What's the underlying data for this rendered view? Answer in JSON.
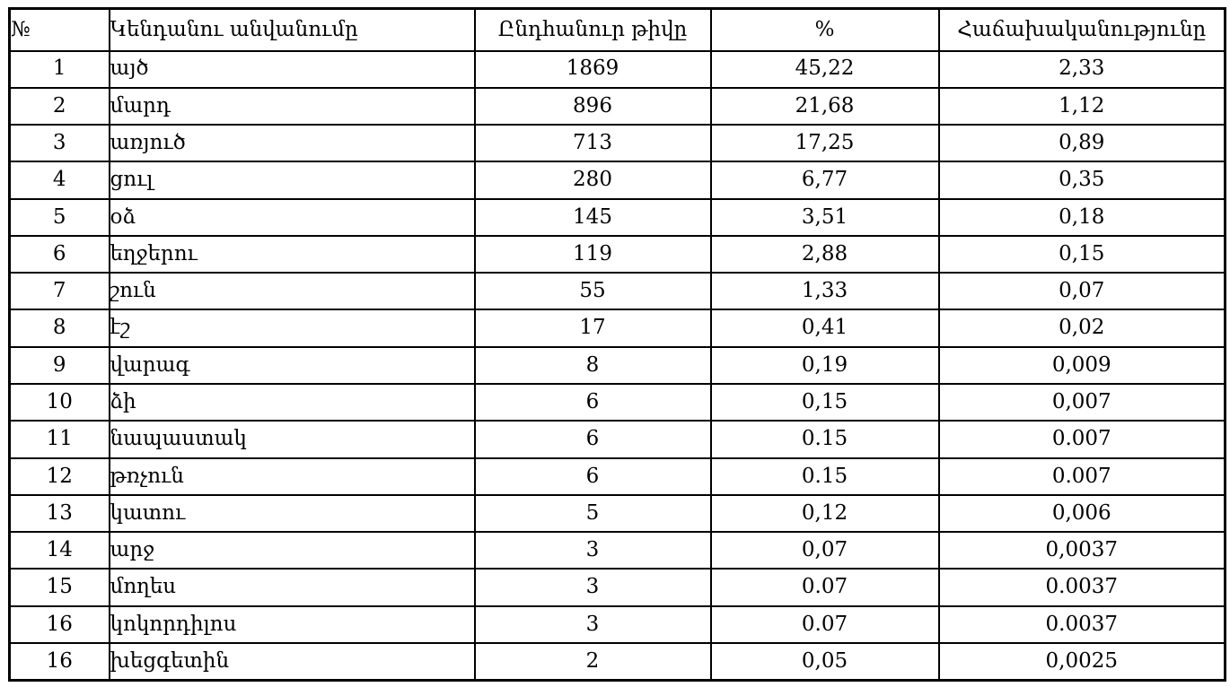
{
  "table": {
    "columns": [
      {
        "label": "№"
      },
      {
        "label": "Կենդանու անվանումը"
      },
      {
        "label": "Ընդհանուր թիվը"
      },
      {
        "label": "%"
      },
      {
        "label": "Հաճախականությունը"
      }
    ],
    "rows": [
      {
        "num": "1",
        "name": "այծ",
        "total": "1869",
        "percent": "45,22",
        "frequency": "2,33"
      },
      {
        "num": "2",
        "name": "մարդ",
        "total": "896",
        "percent": "21,68",
        "frequency": "1,12"
      },
      {
        "num": "3",
        "name": "առյուծ",
        "total": "713",
        "percent": "17,25",
        "frequency": "0,89"
      },
      {
        "num": "4",
        "name": "ցուլ",
        "total": "280",
        "percent": "6,77",
        "frequency": "0,35"
      },
      {
        "num": "5",
        "name": "օձ",
        "total": "145",
        "percent": "3,51",
        "frequency": "0,18"
      },
      {
        "num": "6",
        "name": "եղջերու",
        "total": "119",
        "percent": "2,88",
        "frequency": "0,15"
      },
      {
        "num": "7",
        "name": "շուն",
        "total": "55",
        "percent": "1,33",
        "frequency": "0,07"
      },
      {
        "num": "8",
        "name": "էշ",
        "total": "17",
        "percent": "0,41",
        "frequency": "0,02"
      },
      {
        "num": "9",
        "name": "վարագ",
        "total": "8",
        "percent": "0,19",
        "frequency": "0,009"
      },
      {
        "num": "10",
        "name": "ձի",
        "total": "6",
        "percent": "0,15",
        "frequency": "0,007"
      },
      {
        "num": "11",
        "name": "նապաստակ",
        "total": "6",
        "percent": "0.15",
        "frequency": "0.007"
      },
      {
        "num": "12",
        "name": "թռչուն",
        "total": "6",
        "percent": "0.15",
        "frequency": "0.007"
      },
      {
        "num": "13",
        "name": "կատու",
        "total": "5",
        "percent": "0,12",
        "frequency": "0,006"
      },
      {
        "num": "14",
        "name": "արջ",
        "total": "3",
        "percent": "0,07",
        "frequency": "0,0037"
      },
      {
        "num": "15",
        "name": "մողես",
        "total": "3",
        "percent": "0.07",
        "frequency": "0.0037"
      },
      {
        "num": "16",
        "name": "կոկորդիլոս",
        "total": "3",
        "percent": "0.07",
        "frequency": "0.0037"
      },
      {
        "num": "16",
        "name": "խեցգետին",
        "total": "2",
        "percent": "0,05",
        "frequency": "0,0025"
      }
    ]
  }
}
